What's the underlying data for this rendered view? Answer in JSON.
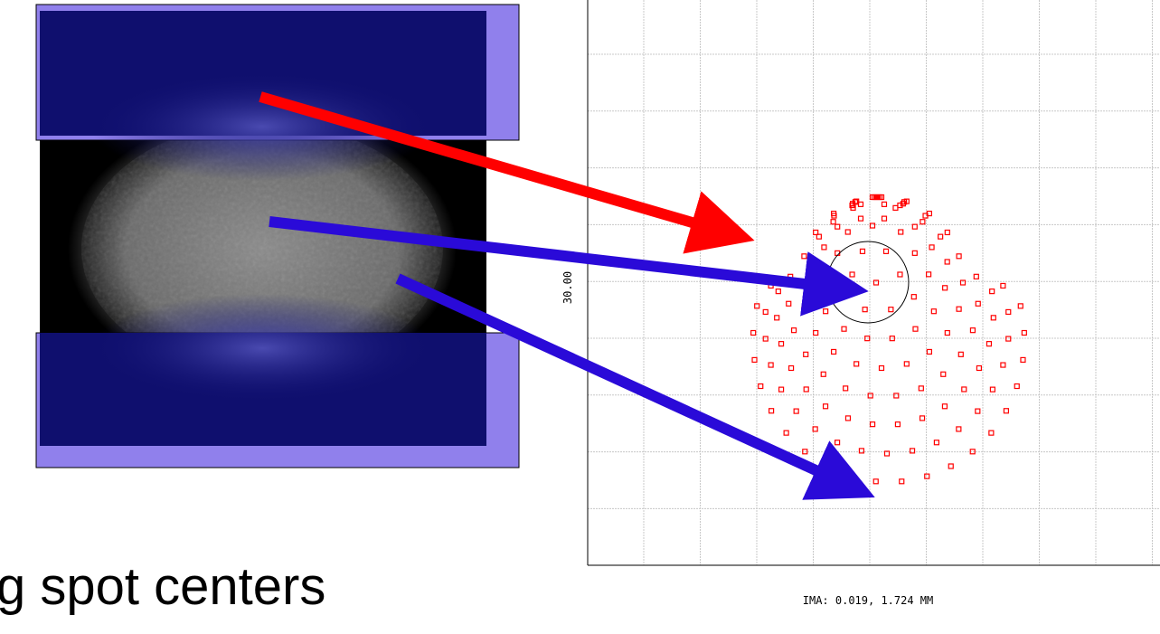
{
  "slide": {
    "caption": "g spot centers"
  },
  "plot": {
    "y_label": "30.00",
    "footer": "IMA: 0.019, 1.724 MM"
  }
}
